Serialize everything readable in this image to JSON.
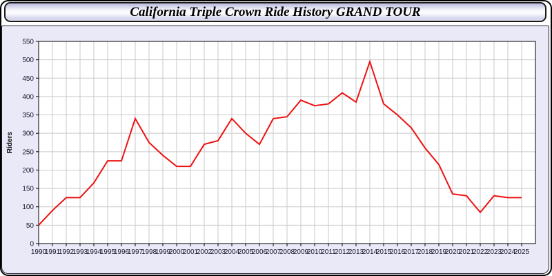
{
  "title": "California Triple Crown Ride History GRAND TOUR",
  "colors": {
    "line": "#ee1111",
    "panel_bg": "#e9e9f8",
    "plot_bg": "#ffffff",
    "grid": "#c9c9c9",
    "frame": "#000000",
    "tick_label": "#15152c",
    "titlebar_border": "#1a1a1a"
  },
  "chart_data": {
    "type": "line",
    "title": "California Triple Crown Ride History GRAND TOUR",
    "xlabel": "",
    "ylabel": "Riders",
    "legend": "none",
    "grid": "on",
    "ylim": [
      0,
      550
    ],
    "ystep": 50,
    "categories": [
      "1990",
      "1991",
      "1992",
      "1993",
      "1994",
      "1995",
      "1996",
      "1997",
      "1998",
      "1999",
      "2000",
      "2001",
      "2002",
      "2003",
      "2004",
      "2005",
      "2006",
      "2007",
      "2008",
      "2009",
      "2010",
      "2011",
      "2012",
      "2013",
      "2014",
      "2015",
      "2016",
      "2017",
      "2018",
      "2019",
      "2020",
      "2021",
      "2022",
      "2023",
      "2024",
      "2025"
    ],
    "series": [
      {
        "name": "Riders",
        "values": [
          50,
          90,
          125,
          125,
          165,
          225,
          225,
          340,
          275,
          240,
          210,
          210,
          270,
          280,
          340,
          300,
          270,
          340,
          345,
          390,
          375,
          380,
          410,
          385,
          495,
          380,
          350,
          315,
          260,
          215,
          135,
          130,
          85,
          130,
          125,
          125
        ]
      }
    ]
  }
}
